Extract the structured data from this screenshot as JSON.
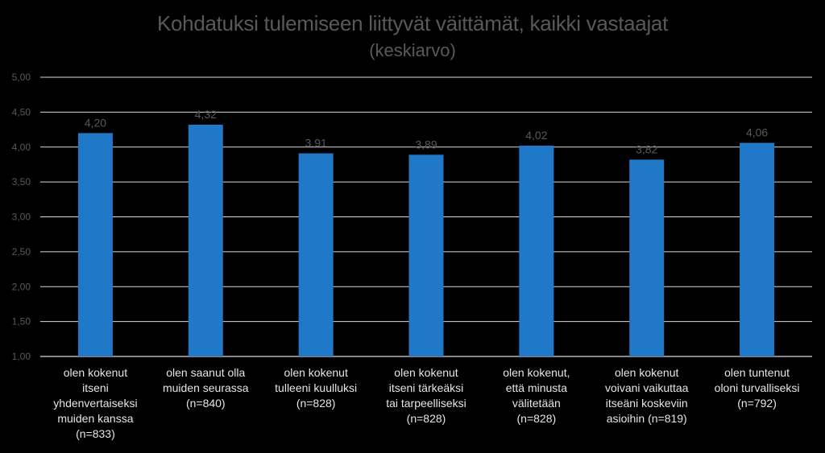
{
  "chart_data": {
    "type": "bar",
    "title": "Kohdatuksi tulemiseen liittyvät väittämät, kaikki vastaajat",
    "subtitle": "(keskiarvo)",
    "xlabel": "",
    "ylabel": "",
    "ylim": [
      1.0,
      5.0
    ],
    "yticks": [
      "1,00",
      "1,50",
      "2,00",
      "2,50",
      "3,00",
      "3,50",
      "4,00",
      "4,50",
      "5,00"
    ],
    "grid": true,
    "bar_color": "#1F78C8",
    "categories": [
      [
        "olen kokenut",
        "itseni",
        "yhdenvertaiseksi",
        "muiden kanssa",
        "(n=833)"
      ],
      [
        "olen saanut olla",
        "muiden seurassa",
        "(n=840)"
      ],
      [
        "olen kokenut",
        "tulleeni kuulluksi",
        "(n=828)"
      ],
      [
        "olen kokenut",
        "itseni tärkeäksi",
        "tai tarpeelliseksi",
        "(n=828)"
      ],
      [
        "olen kokenut,",
        "että minusta",
        "välitetään",
        "(n=828)"
      ],
      [
        "olen kokenut",
        "voivani vaikuttaa",
        "itseäni koskeviin",
        "asioihin (n=819)"
      ],
      [
        "olen tuntenut",
        "oloni turvalliseksi",
        "(n=792)"
      ]
    ],
    "values": [
      4.2,
      4.32,
      3.91,
      3.89,
      4.02,
      3.82,
      4.06
    ],
    "value_labels": [
      "4,20",
      "4,32",
      "3,91",
      "3,89",
      "4,02",
      "3,82",
      "4,06"
    ]
  }
}
